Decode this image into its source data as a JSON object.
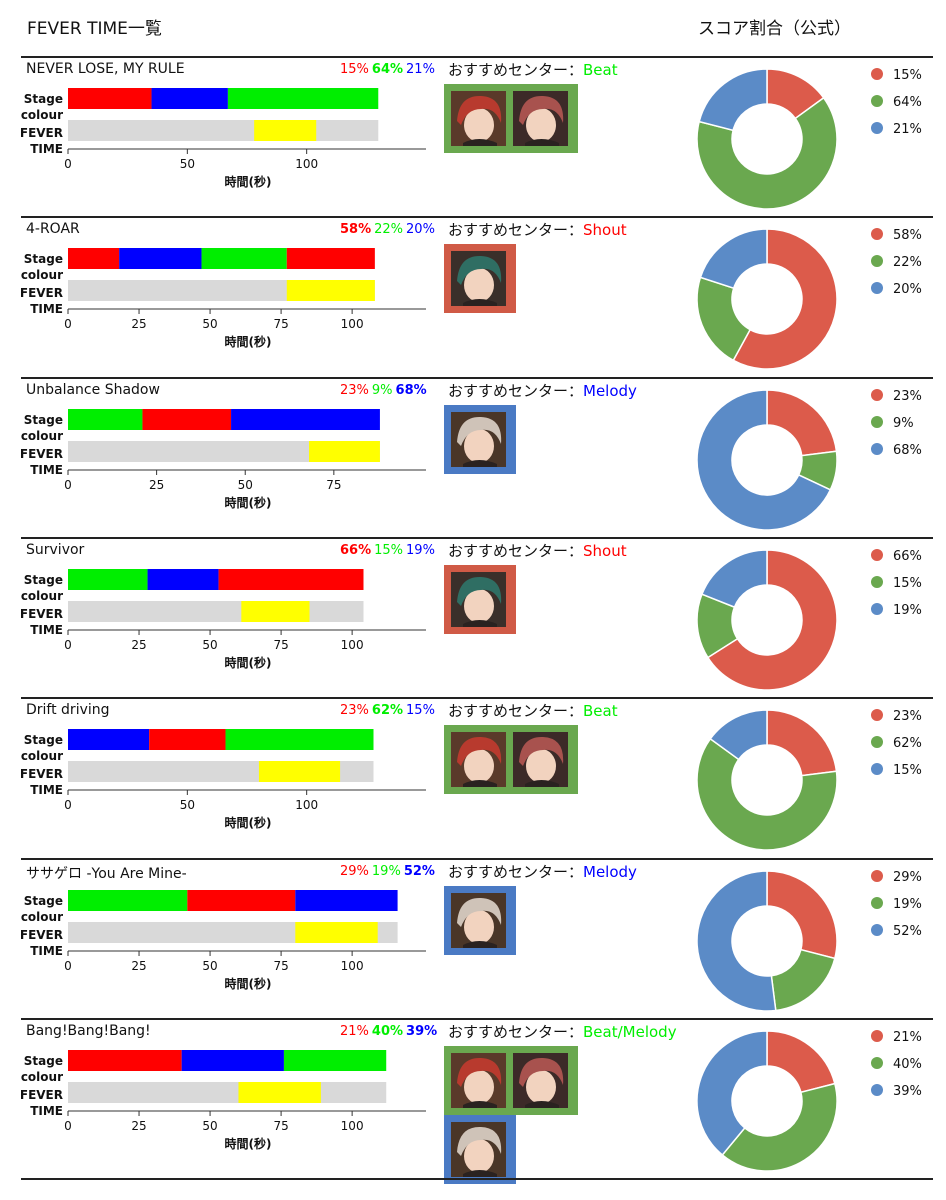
{
  "header": {
    "left": "FEVER TIME一覧",
    "right": "スコア割合（公式）"
  },
  "labels": {
    "center_prefix": "おすすめセンター：",
    "stage1": "Stage",
    "stage2": "colour",
    "fever1": "FEVER",
    "fever2": "TIME",
    "xlabel": "時間(秒)"
  },
  "colors": {
    "shout": "#ff0000",
    "beat": "#00ee00",
    "melody": "#0000ff",
    "fever": "#ffff00",
    "track": "#d9d9d9",
    "pie_red": "#dc5b4b",
    "pie_green": "#6aa84f",
    "pie_blue": "#5b8bc7",
    "frame_green": "#6aa84f",
    "frame_red": "#d05a46",
    "frame_blue": "#4a7ac4"
  },
  "chart_data": [
    {
      "type": "bar",
      "title": "NEVER LOSE, MY RULE",
      "percents": [
        "15%",
        "64%",
        "21%"
      ],
      "bold": [
        false,
        true,
        false
      ],
      "pie": [
        15,
        64,
        21
      ],
      "segments": [
        {
          "color": "red",
          "start": 0,
          "end": 35
        },
        {
          "color": "blue",
          "start": 35,
          "end": 67
        },
        {
          "color": "green",
          "start": 67,
          "end": 130
        }
      ],
      "fever": [
        78,
        104
      ],
      "total": 130,
      "xmax": 150,
      "ticks": [
        0,
        50,
        100
      ],
      "center": "Beat",
      "center_color": "beat",
      "portraits": [
        {
          "name": "red-hair-portrait",
          "frame": "green"
        },
        {
          "name": "pink-hair-portrait",
          "frame": "green"
        }
      ]
    },
    {
      "type": "bar",
      "title": "4-ROAR",
      "percents": [
        "58%",
        "22%",
        "20%"
      ],
      "bold": [
        true,
        false,
        false
      ],
      "pie": [
        58,
        22,
        20
      ],
      "segments": [
        {
          "color": "red",
          "start": 0,
          "end": 18
        },
        {
          "color": "blue",
          "start": 18,
          "end": 47
        },
        {
          "color": "green",
          "start": 47,
          "end": 77
        },
        {
          "color": "red",
          "start": 77,
          "end": 108
        }
      ],
      "fever": [
        77,
        108
      ],
      "total": 108,
      "xmax": 126,
      "ticks": [
        0,
        25,
        50,
        75,
        100
      ],
      "center": "Shout",
      "center_color": "shout",
      "portraits": [
        {
          "name": "green-hair-portrait",
          "frame": "red"
        }
      ]
    },
    {
      "type": "bar",
      "title": "Unbalance Shadow",
      "percents": [
        "23%",
        "9%",
        "68%"
      ],
      "bold": [
        false,
        false,
        true
      ],
      "pie": [
        23,
        9,
        68
      ],
      "segments": [
        {
          "color": "green",
          "start": 0,
          "end": 21
        },
        {
          "color": "red",
          "start": 21,
          "end": 46
        },
        {
          "color": "blue",
          "start": 46,
          "end": 88
        }
      ],
      "fever": [
        68,
        88
      ],
      "total": 88,
      "xmax": 101,
      "ticks": [
        0,
        25,
        50,
        75
      ],
      "center": "Melody",
      "center_color": "melody",
      "portraits": [
        {
          "name": "silver-hair-portrait",
          "frame": "blue"
        }
      ]
    },
    {
      "type": "bar",
      "title": "Survivor",
      "percents": [
        "66%",
        "15%",
        "19%"
      ],
      "bold": [
        true,
        false,
        false
      ],
      "pie": [
        66,
        15,
        19
      ],
      "segments": [
        {
          "color": "green",
          "start": 0,
          "end": 28
        },
        {
          "color": "blue",
          "start": 28,
          "end": 53
        },
        {
          "color": "red",
          "start": 53,
          "end": 104
        }
      ],
      "fever": [
        61,
        85
      ],
      "total": 104,
      "xmax": 126,
      "ticks": [
        0,
        25,
        50,
        75,
        100
      ],
      "center": "Shout",
      "center_color": "shout",
      "portraits": [
        {
          "name": "green-hair-portrait",
          "frame": "red"
        }
      ]
    },
    {
      "type": "bar",
      "title": "Drift driving",
      "percents": [
        "23%",
        "62%",
        "15%"
      ],
      "bold": [
        false,
        true,
        false
      ],
      "pie": [
        23,
        62,
        15
      ],
      "segments": [
        {
          "color": "blue",
          "start": 0,
          "end": 34
        },
        {
          "color": "red",
          "start": 34,
          "end": 66
        },
        {
          "color": "green",
          "start": 66,
          "end": 128
        }
      ],
      "fever": [
        80,
        114
      ],
      "total": 128,
      "xmax": 150,
      "ticks": [
        0,
        50,
        100
      ],
      "center": "Beat",
      "center_color": "beat",
      "portraits": [
        {
          "name": "red-hair-portrait",
          "frame": "green"
        },
        {
          "name": "pink-hair-portrait",
          "frame": "green"
        }
      ]
    },
    {
      "type": "bar",
      "title": "ササゲロ -You Are Mine-",
      "percents": [
        "29%",
        "19%",
        "52%"
      ],
      "bold": [
        false,
        false,
        true
      ],
      "pie": [
        29,
        19,
        52
      ],
      "segments": [
        {
          "color": "green",
          "start": 0,
          "end": 42
        },
        {
          "color": "red",
          "start": 42,
          "end": 80
        },
        {
          "color": "blue",
          "start": 80,
          "end": 116
        }
      ],
      "fever": [
        80,
        109
      ],
      "total": 116,
      "xmax": 126,
      "ticks": [
        0,
        25,
        50,
        75,
        100
      ],
      "center": "Melody",
      "center_color": "melody",
      "portraits": [
        {
          "name": "silver-hair-portrait",
          "frame": "blue"
        }
      ]
    },
    {
      "type": "bar",
      "title": "Bang!Bang!Bang!",
      "percents": [
        "21%",
        "40%",
        "39%"
      ],
      "bold": [
        false,
        true,
        true
      ],
      "pie": [
        21,
        40,
        39
      ],
      "segments": [
        {
          "color": "red",
          "start": 0,
          "end": 40
        },
        {
          "color": "blue",
          "start": 40,
          "end": 76
        },
        {
          "color": "green",
          "start": 76,
          "end": 112
        }
      ],
      "fever": [
        60,
        89
      ],
      "total": 112,
      "xmax": 126,
      "ticks": [
        0,
        25,
        50,
        75,
        100
      ],
      "center": "Beat/Melody",
      "center_color": "beat",
      "portraits": [
        {
          "name": "red-hair-portrait",
          "frame": "green"
        },
        {
          "name": "pink-hair-portrait",
          "frame": "green"
        },
        {
          "name": "silver-hair-portrait",
          "frame": "blue"
        }
      ]
    }
  ]
}
